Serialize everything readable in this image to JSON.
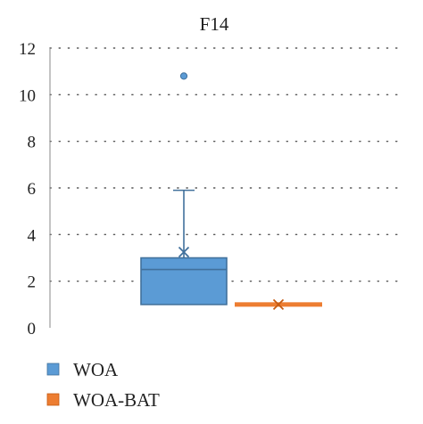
{
  "chart_data": {
    "type": "box",
    "title": "F14",
    "xlabel": "",
    "ylabel": "",
    "ylim": [
      0,
      12
    ],
    "yticks": [
      0,
      2,
      4,
      6,
      8,
      10,
      12
    ],
    "grid": "horizontal-dotted",
    "legend_position": "bottom-left",
    "series": [
      {
        "name": "WOA",
        "color": "#5B9BD5",
        "stroke": "#41719C",
        "min": 1.0,
        "q1": 1.0,
        "median": 2.5,
        "q3": 3.0,
        "max": 5.9,
        "mean": 3.25,
        "outliers": [
          10.8
        ]
      },
      {
        "name": "WOA-BAT",
        "color": "#ED7D31",
        "stroke": "#C55A11",
        "min": 1.0,
        "q1": 1.0,
        "median": 1.0,
        "q3": 1.0,
        "max": 1.0,
        "mean": 1.0,
        "outliers": []
      }
    ]
  }
}
